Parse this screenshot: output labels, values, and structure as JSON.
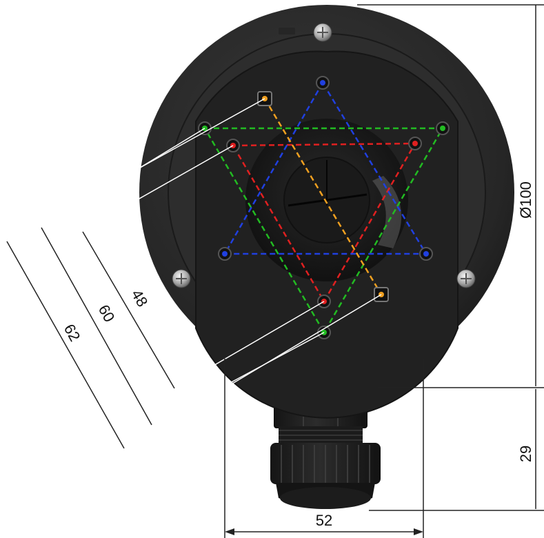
{
  "dimensions": {
    "diameter": "Ø100",
    "outer_holes": "62",
    "middle_holes": "60",
    "inner_holes": "48",
    "gland_height": "29",
    "gland_width": "52"
  },
  "colors": {
    "background": "#ffffff",
    "housing": "#2a2a2a",
    "plate": "#232323",
    "gland": "#1e1e1e",
    "dimension_line": "#222222",
    "leader_line": "#ffffff",
    "pattern_green": "#22bb22",
    "pattern_red": "#e02020",
    "pattern_blue": "#2040e0",
    "pattern_orange": "#f0a020"
  }
}
